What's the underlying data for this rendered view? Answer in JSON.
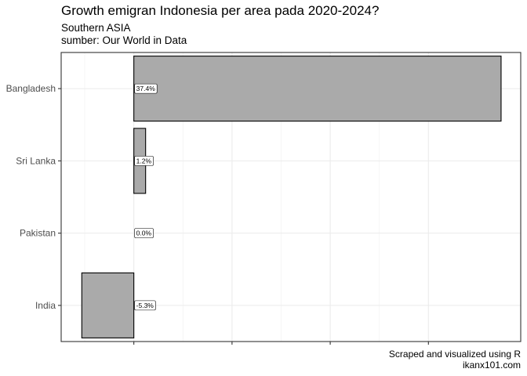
{
  "chart_data": {
    "type": "bar",
    "orientation": "horizontal",
    "title": "Growth emigran Indonesia per area pada 2020-2024?",
    "subtitle": [
      "Southern ASIA",
      "sumber: Our World in Data"
    ],
    "caption": [
      "Scraped and visualized using R",
      "ikanx101.com"
    ],
    "categories": [
      "Bangladesh",
      "Sri Lanka",
      "Pakistan",
      "India"
    ],
    "values": [
      37.4,
      1.2,
      0.0,
      -5.3
    ],
    "labels": [
      "37.4%",
      "1.2%",
      "0.0%",
      "-5.3%"
    ],
    "xlim": [
      -7.4,
      39.4
    ],
    "xticks": [
      0,
      10,
      20,
      30
    ],
    "xtick_labels_shown": false,
    "grid": true,
    "legend": "none",
    "bar_color": "#aaaaaa",
    "bar_border_color": "#000000"
  }
}
